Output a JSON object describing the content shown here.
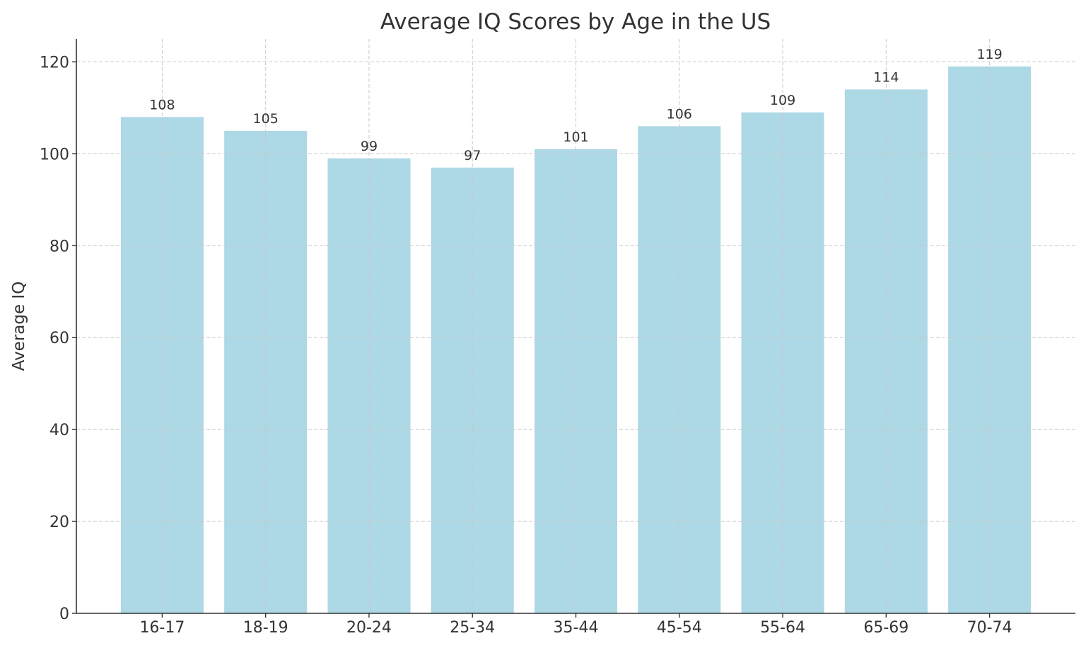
{
  "chart_data": {
    "type": "bar",
    "title": "Average IQ Scores by Age in the US",
    "xlabel": "",
    "ylabel": "Average IQ",
    "categories": [
      "16-17",
      "18-19",
      "20-24",
      "25-34",
      "35-44",
      "45-54",
      "55-64",
      "65-69",
      "70-74"
    ],
    "values": [
      108,
      105,
      99,
      97,
      101,
      106,
      109,
      114,
      119
    ],
    "ylim": [
      0,
      125
    ],
    "yticks": [
      0,
      20,
      40,
      60,
      80,
      100,
      120
    ],
    "grid": true,
    "data_labels": true,
    "bar_color": "#add8e6"
  }
}
